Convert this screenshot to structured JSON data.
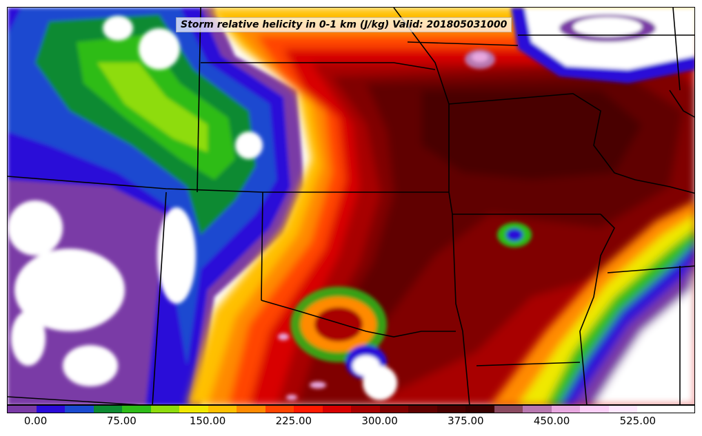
{
  "title": "Storm relative helicity in 0-1 km (J/kg) Valid: 201805031000",
  "colorbar": {
    "min": -25,
    "max": 575,
    "step": 25,
    "colors": [
      "#7a3aa6",
      "#2a0ad8",
      "#1a4ad0",
      "#0d8a32",
      "#2ebc18",
      "#8edc0c",
      "#f0e800",
      "#ffc000",
      "#ff8a00",
      "#ff4400",
      "#ff1a00",
      "#d80000",
      "#a80000",
      "#800000",
      "#600000",
      "#4a0000",
      "#3a0000",
      "#8a4a60",
      "#b878b0",
      "#e8a8e0",
      "#fcd0f8",
      "#ffe8ff",
      "#ffffff",
      "#ffffff"
    ],
    "tick_labels": [
      "0.00",
      "75.00",
      "150.00",
      "225.00",
      "300.00",
      "375.00",
      "450.00",
      "525.00"
    ],
    "tick_values": [
      0,
      75,
      150,
      225,
      300,
      375,
      450,
      525
    ]
  },
  "map": {
    "field": "storm relative helicity 0-1 km",
    "borders": "state boundaries"
  }
}
